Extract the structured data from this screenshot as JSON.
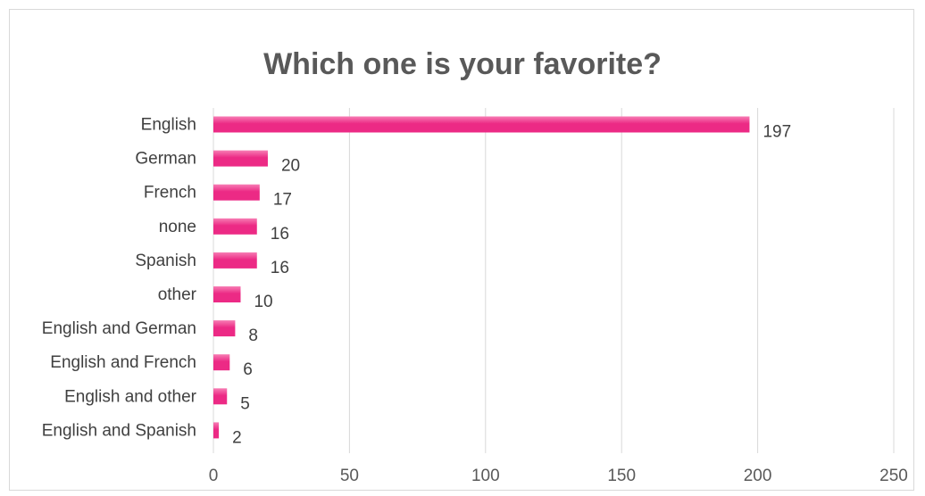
{
  "chart_data": {
    "type": "bar",
    "orientation": "horizontal",
    "title": "Which one is your favorite?",
    "categories": [
      "English",
      "German",
      "French",
      "none",
      "Spanish",
      "other",
      "English and German",
      "English and French",
      "English and other",
      "English and Spanish"
    ],
    "values": [
      197,
      20,
      17,
      16,
      16,
      10,
      8,
      6,
      5,
      2
    ],
    "xlim": [
      0,
      250
    ],
    "xticks": [
      0,
      50,
      100,
      150,
      200,
      250
    ],
    "grid": true,
    "data_labels": true,
    "legend": "none",
    "bar_color": "#ec2a85",
    "bar_color_light": "#f77db4"
  }
}
